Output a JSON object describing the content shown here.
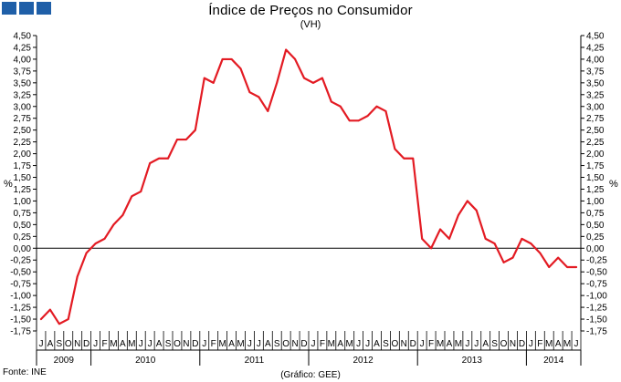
{
  "chart_data": {
    "type": "line",
    "title": "Índice de Preços no Consumidor",
    "subtitle": "(VH)",
    "ylabel_left": "%",
    "ylabel_right": "%",
    "ylim": [
      -1.75,
      4.5
    ],
    "yticks": [
      "4,50",
      "4,25",
      "4,00",
      "3,75",
      "3,50",
      "3,25",
      "3,00",
      "2,75",
      "2,50",
      "2,25",
      "2,00",
      "1,75",
      "1,50",
      "1,25",
      "1,00",
      "0,75",
      "0,50",
      "0,25",
      "0,00",
      "-0,25",
      "-0,50",
      "-0,75",
      "-1,00",
      "-1,25",
      "-1,50",
      "-1,75"
    ],
    "month_labels": [
      "J",
      "A",
      "S",
      "O",
      "N",
      "D",
      "J",
      "F",
      "M",
      "A",
      "M",
      "J",
      "J",
      "A",
      "S",
      "O",
      "N",
      "D",
      "J",
      "F",
      "M",
      "A",
      "M",
      "J",
      "J",
      "A",
      "S",
      "O",
      "N",
      "D",
      "J",
      "F",
      "M",
      "A",
      "M",
      "J",
      "J",
      "A",
      "S",
      "O",
      "N",
      "D",
      "J",
      "F",
      "M",
      "A",
      "M",
      "J",
      "J",
      "A",
      "S",
      "O",
      "N",
      "D",
      "J",
      "F",
      "M",
      "A",
      "M",
      "J"
    ],
    "years": [
      {
        "label": "2009",
        "months": 6
      },
      {
        "label": "2010",
        "months": 12
      },
      {
        "label": "2011",
        "months": 12
      },
      {
        "label": "2012",
        "months": 12
      },
      {
        "label": "2013",
        "months": 12
      },
      {
        "label": "2014",
        "months": 6
      }
    ],
    "series": [
      {
        "color": "#e31b23",
        "values": [
          -1.5,
          -1.3,
          -1.6,
          -1.5,
          -0.6,
          -0.1,
          0.1,
          0.2,
          0.5,
          0.7,
          1.1,
          1.2,
          1.8,
          1.9,
          1.9,
          2.3,
          2.3,
          2.5,
          3.6,
          3.5,
          4.0,
          4.0,
          3.8,
          3.3,
          3.2,
          2.9,
          3.5,
          4.2,
          4.0,
          3.6,
          3.5,
          3.6,
          3.1,
          3.0,
          2.7,
          2.7,
          2.8,
          3.0,
          2.9,
          2.1,
          1.9,
          1.9,
          0.2,
          0.0,
          0.4,
          0.2,
          0.7,
          1.0,
          0.8,
          0.2,
          0.1,
          -0.3,
          -0.2,
          0.2,
          0.1,
          -0.1,
          -0.4,
          -0.2,
          -0.4,
          -0.4
        ]
      }
    ],
    "grid": false
  },
  "footer": {
    "source": "Fonte: INE",
    "credit": "(Gráfico: GEE)"
  }
}
